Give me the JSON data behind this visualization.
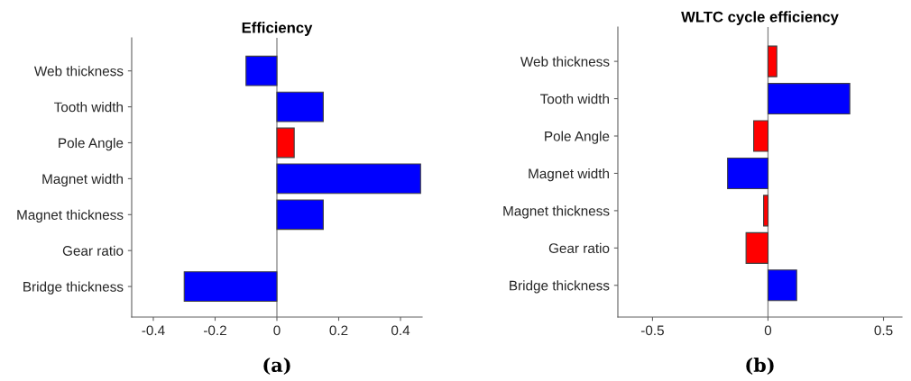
{
  "chart_data": [
    {
      "type": "bar",
      "orientation": "horizontal",
      "title": "Efficiency",
      "categories": [
        "Web thickness",
        "Tooth width",
        "Pole Angle",
        "Magnet width",
        "Magnet thickness",
        "Gear ratio",
        "Bridge thickness"
      ],
      "values": [
        -0.1,
        0.15,
        0.056,
        0.465,
        0.15,
        null,
        -0.3
      ],
      "colors": [
        "#0000ff",
        "#0000ff",
        "#ff0000",
        "#0000ff",
        "#0000ff",
        "#0000ff",
        "#0000ff"
      ],
      "xlim": [
        -0.47,
        0.47
      ],
      "xticks": [
        -0.4,
        -0.2,
        0,
        0.2,
        0.4
      ],
      "ref_lines": [
        {
          "axis": "x",
          "value": 0,
          "color": "#808080"
        }
      ],
      "annotations": [
        "(a)"
      ],
      "grid": false,
      "legend": false
    },
    {
      "type": "bar",
      "orientation": "horizontal",
      "title": "WLTC cycle efficiency",
      "categories": [
        "Web thickness",
        "Tooth width",
        "Pole Angle",
        "Magnet width",
        "Magnet thickness",
        "Gear ratio",
        "Bridge thickness"
      ],
      "values": [
        0.038,
        0.354,
        -0.062,
        -0.175,
        -0.019,
        -0.095,
        0.124
      ],
      "colors": [
        "#ff0000",
        "#0000ff",
        "#ff0000",
        "#0000ff",
        "#ff0000",
        "#ff0000",
        "#0000ff"
      ],
      "xlim": [
        -0.65,
        0.58
      ],
      "xticks": [
        -0.5,
        0,
        0.5
      ],
      "ref_lines": [
        {
          "axis": "x",
          "value": 0,
          "color": "#808080"
        }
      ],
      "annotations": [
        "(b)"
      ],
      "grid": false,
      "legend": false
    }
  ]
}
